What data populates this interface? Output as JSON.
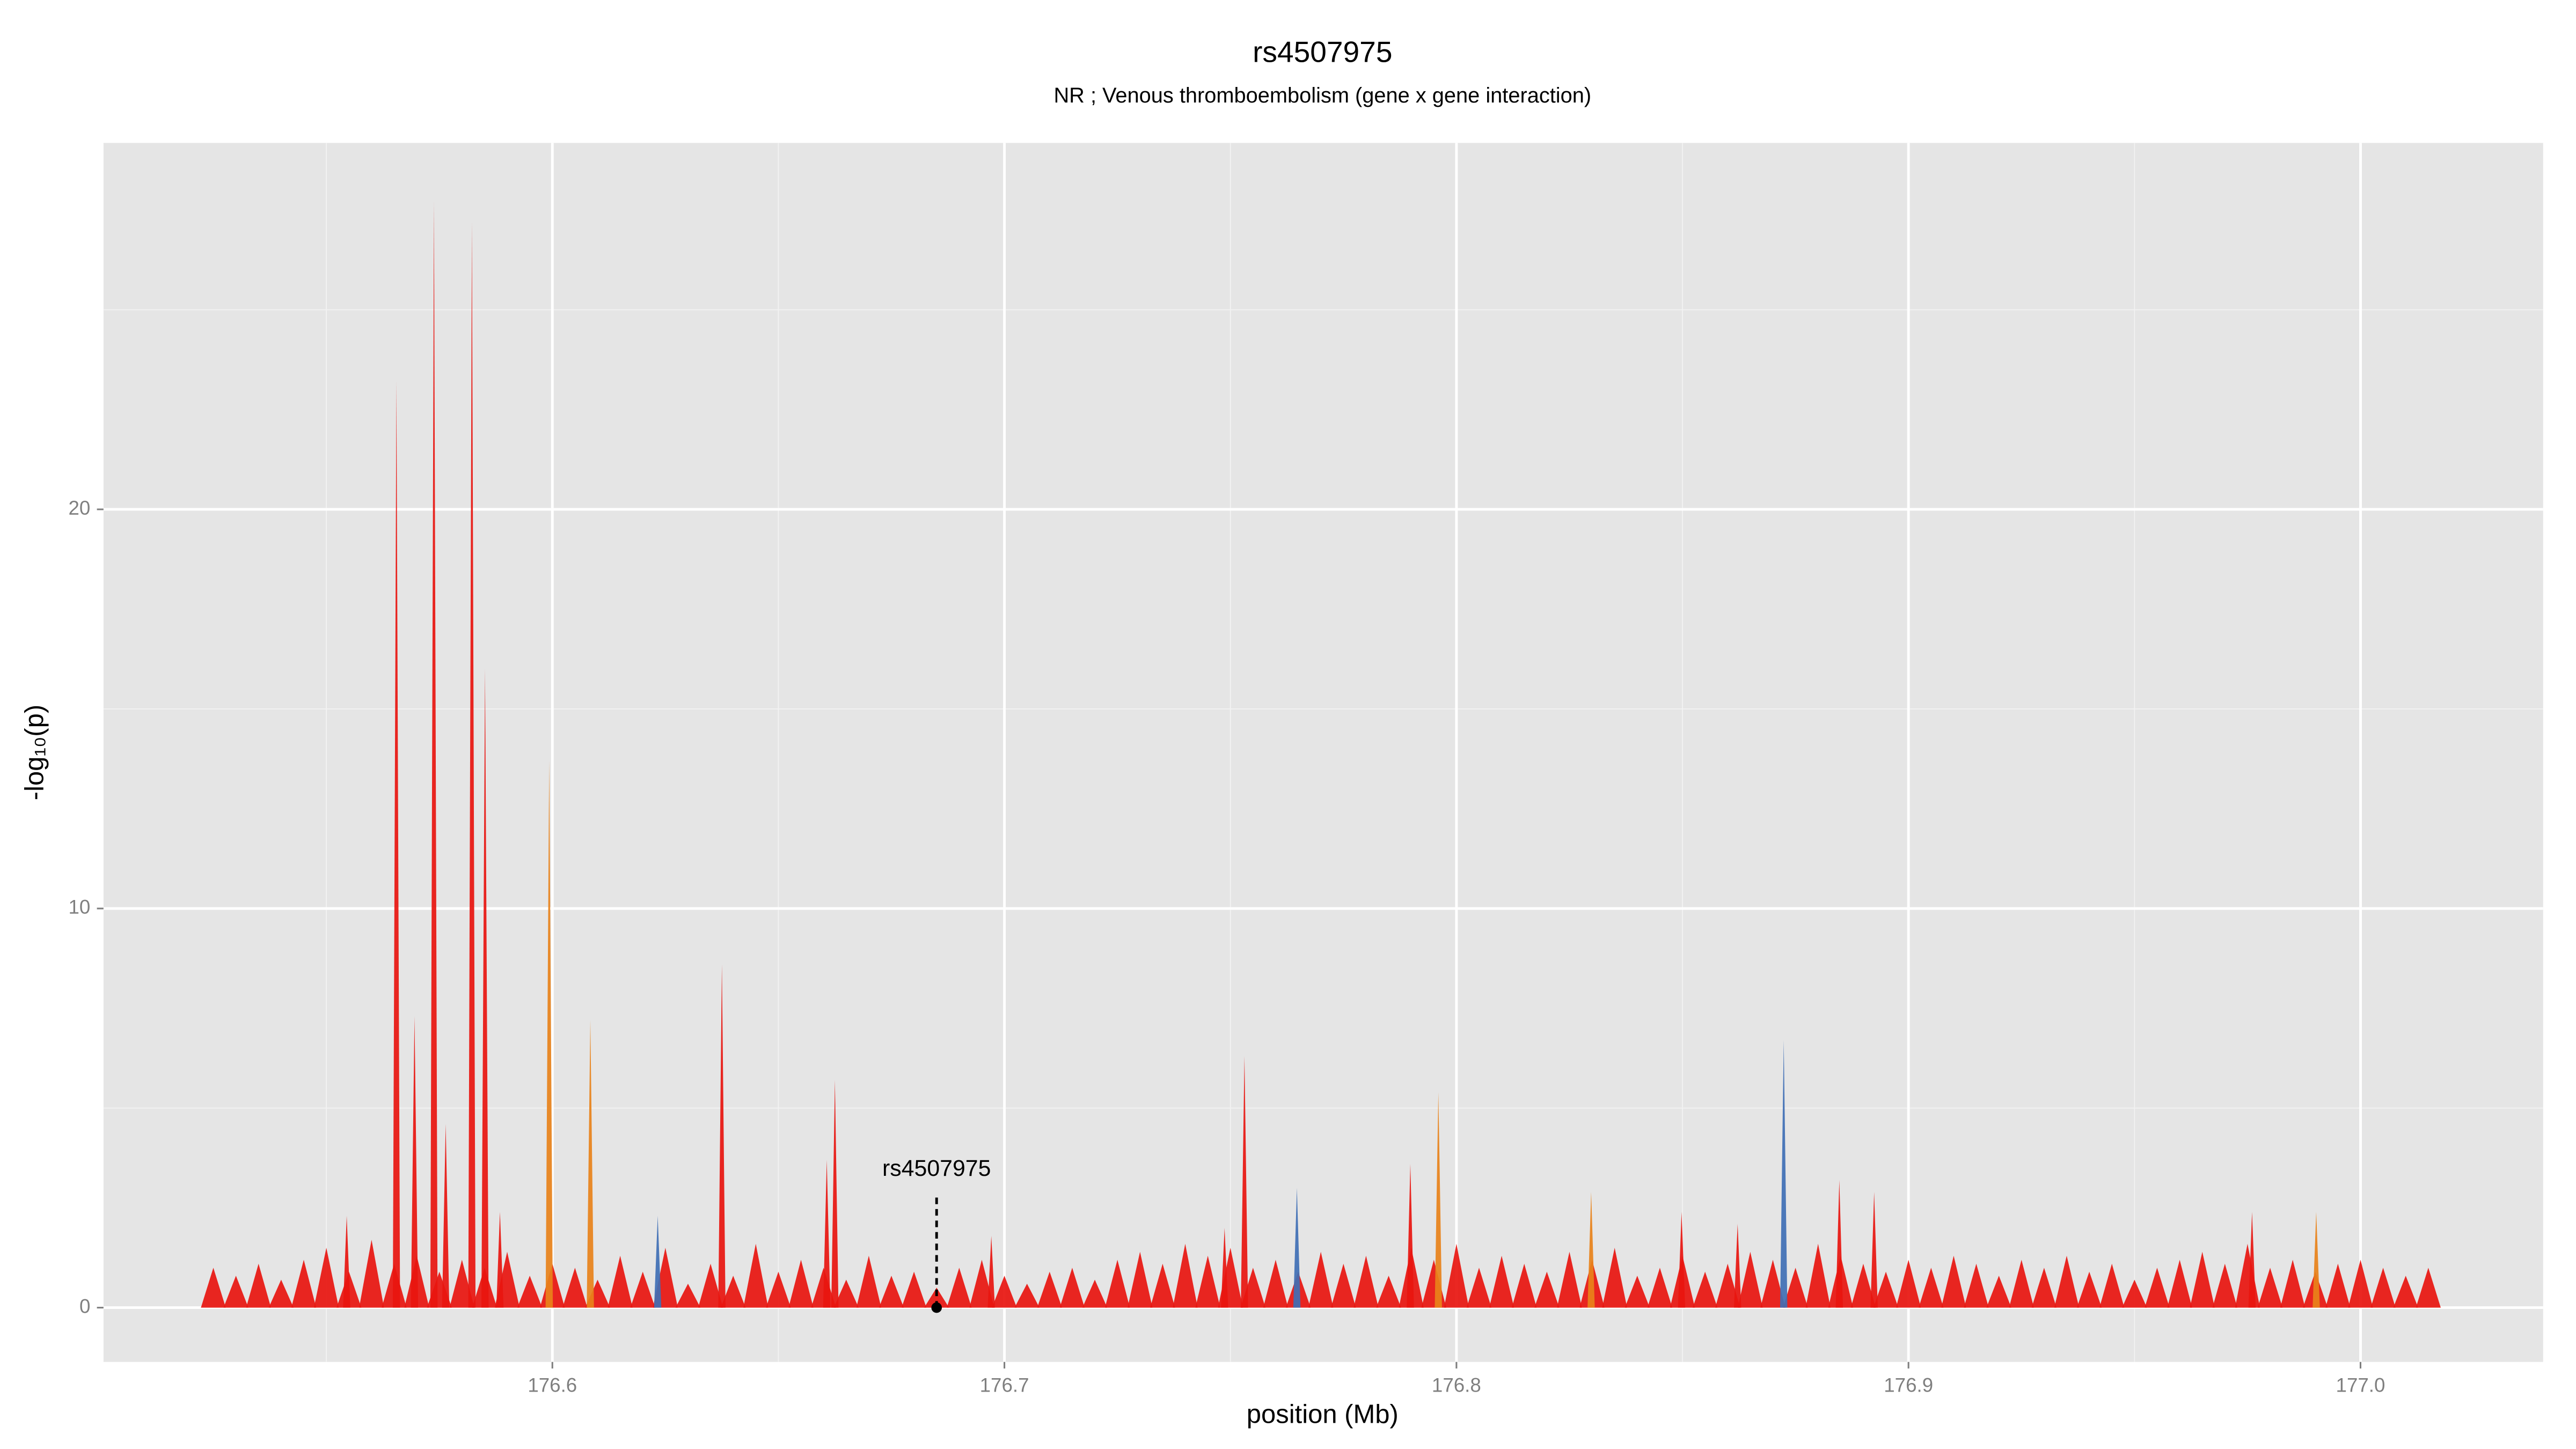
{
  "chart_data": {
    "type": "spike",
    "title": "rs4507975",
    "subtitle": "NR ; Venous thromboembolism (gene x gene interaction)",
    "x_label": "position (Mb)",
    "y_label": "-log₁₀(p)",
    "xlim": [
      176.5007,
      177.0404
    ],
    "ylim": [
      -1.36,
      29.18
    ],
    "xticks": [
      176.6,
      176.7,
      176.8,
      176.9,
      {
        "value": 177.0,
        "label": "177.0"
      }
    ],
    "yticks": [
      0,
      10,
      20
    ],
    "grid": true,
    "series": [
      {
        "color": "#e8150f",
        "x": [
          176.525,
          176.53,
          176.535,
          176.54,
          176.545,
          176.55,
          176.555,
          176.56,
          176.565,
          176.57,
          176.575,
          176.58,
          176.585,
          176.59,
          176.595,
          176.6,
          176.605,
          176.61,
          176.615,
          176.62,
          176.625,
          176.63,
          176.635,
          176.64,
          176.645,
          176.65,
          176.655,
          176.66,
          176.665,
          176.67,
          176.675,
          176.68,
          176.685,
          176.69,
          176.695,
          176.7,
          176.705,
          176.71,
          176.715,
          176.72,
          176.725,
          176.73,
          176.735,
          176.74,
          176.745,
          176.75,
          176.755,
          176.76,
          176.765,
          176.77,
          176.775,
          176.78,
          176.785,
          176.79,
          176.795,
          176.8,
          176.805,
          176.81,
          176.815,
          176.82,
          176.825,
          176.83,
          176.835,
          176.84,
          176.845,
          176.85,
          176.855,
          176.86,
          176.865,
          176.87,
          176.875,
          176.88,
          176.885,
          176.89,
          176.895,
          176.9,
          176.905,
          176.91,
          176.915,
          176.92,
          176.925,
          176.93,
          176.935,
          176.94,
          176.945,
          176.95,
          176.955,
          176.96,
          176.965,
          176.97,
          176.975,
          176.98,
          176.985,
          176.99,
          176.995,
          177.0,
          177.005,
          177.01,
          177.015
        ],
        "values": [
          1.0,
          0.8,
          1.1,
          0.7,
          1.2,
          1.5,
          0.9,
          1.7,
          1.1,
          1.3,
          0.9,
          1.2,
          1.0,
          1.4,
          0.8,
          1.1,
          1.0,
          0.7,
          1.3,
          0.9,
          1.5,
          0.6,
          1.1,
          0.8,
          1.6,
          0.9,
          1.2,
          1.0,
          0.7,
          1.3,
          0.8,
          0.9,
          0.5,
          1.0,
          1.2,
          0.8,
          0.6,
          0.9,
          1.0,
          0.7,
          1.2,
          1.4,
          1.1,
          1.6,
          1.3,
          1.5,
          1.0,
          1.2,
          0.9,
          1.4,
          1.1,
          1.3,
          0.8,
          1.5,
          1.2,
          1.6,
          1.0,
          1.3,
          1.1,
          0.9,
          1.4,
          1.2,
          1.5,
          0.8,
          1.0,
          1.3,
          0.9,
          1.1,
          1.4,
          1.2,
          1.0,
          1.6,
          1.3,
          1.1,
          0.9,
          1.2,
          1.0,
          1.3,
          1.1,
          0.8,
          1.2,
          1.0,
          1.3,
          0.9,
          1.1,
          0.7,
          1.0,
          1.2,
          1.4,
          1.1,
          1.6,
          1.0,
          1.2,
          0.9,
          1.1,
          1.2,
          1.0,
          0.8,
          1.0
        ]
      },
      {
        "color": "#e8150f",
        "x": [
          176.5545,
          176.5655,
          176.5695,
          176.5738,
          176.5764,
          176.5822,
          176.5851,
          176.5884,
          176.6375,
          176.6607,
          176.6625,
          176.6971,
          176.7487,
          176.7531,
          176.7898,
          176.8498,
          176.8622,
          176.8847,
          176.8924,
          176.976
        ],
        "values": [
          2.3,
          23.2,
          7.3,
          27.7,
          4.6,
          27.2,
          16.0,
          2.4,
          8.6,
          3.7,
          5.7,
          1.8,
          2.0,
          6.3,
          3.6,
          2.4,
          2.1,
          3.2,
          2.9,
          2.4
        ]
      },
      {
        "color": "#e8821a",
        "x": [
          176.5993,
          176.6084,
          176.796,
          176.8298,
          176.9902
        ],
        "values": [
          13.7,
          7.2,
          5.4,
          2.9,
          2.4
        ]
      },
      {
        "color": "#3f6fb5",
        "x": [
          176.6233,
          176.7647,
          176.8724
        ],
        "values": [
          2.3,
          3.0,
          6.7
        ]
      }
    ],
    "annotation": {
      "label": "rs4507975",
      "x": 176.685,
      "y": 0
    }
  }
}
